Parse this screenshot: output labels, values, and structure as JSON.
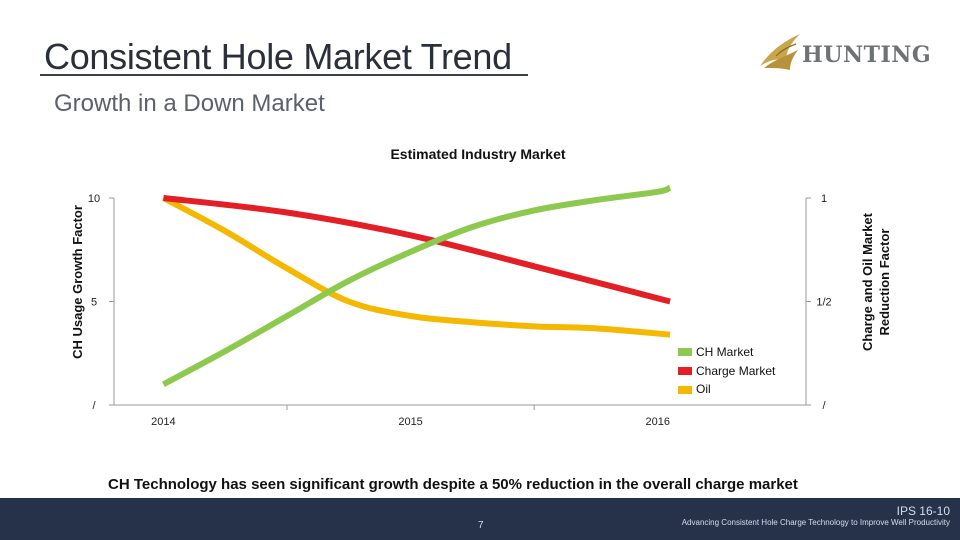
{
  "slide": {
    "title": "Consistent Hole Market Trend",
    "subtitle": "Growth in a Down Market",
    "logo_text": "HUNTING",
    "caption": "CH Technology has seen significant growth despite a 50% reduction in the overall charge market",
    "footer_code": "IPS 16-10",
    "footer_text": "Advancing Consistent Hole Charge Technology to Improve Well Productivity",
    "page_number": "7"
  },
  "colors": {
    "ch_market": "#8ec94f",
    "charge_market": "#e31e24",
    "oil": "#f5b800",
    "axis": "#9a9a9a",
    "footer": "#25324a"
  },
  "chart_data": {
    "type": "line",
    "title": "Estimated Industry Market",
    "xlabel": "",
    "ylabel": "CH Usage Growth Factor",
    "y2label_line1": "Charge and Oil Market",
    "y2label_line2": "Reduction Factor",
    "categories": [
      "2014",
      "2015",
      "2016"
    ],
    "x_range": [
      2013.8,
      2016.6
    ],
    "ylim": [
      0,
      10
    ],
    "y_ticks": [
      {
        "value": 10,
        "label": "10"
      },
      {
        "value": 5,
        "label": "5"
      },
      {
        "value": 0,
        "label": "/"
      }
    ],
    "y2lim": [
      0,
      1
    ],
    "y2_ticks": [
      {
        "value": 1,
        "label": "1"
      },
      {
        "value": 0.5,
        "label": "1/2"
      },
      {
        "value": 0,
        "label": "/"
      }
    ],
    "series": [
      {
        "name": "CH Market",
        "axis": "left",
        "color_key": "ch_market",
        "x": [
          2014.0,
          2014.25,
          2014.5,
          2014.75,
          2015.0,
          2015.25,
          2015.5,
          2015.75,
          2016.0,
          2016.05
        ],
        "values": [
          1.0,
          2.6,
          4.3,
          6.0,
          7.4,
          8.6,
          9.4,
          9.9,
          10.3,
          10.5
        ]
      },
      {
        "name": "Charge Market",
        "axis": "right",
        "color_key": "charge_market",
        "x": [
          2014.0,
          2014.5,
          2015.0,
          2015.5,
          2016.05
        ],
        "values": [
          1.0,
          0.93,
          0.82,
          0.67,
          0.5
        ]
      },
      {
        "name": "Oil",
        "axis": "right",
        "color_key": "oil",
        "x": [
          2014.0,
          2014.25,
          2014.5,
          2014.75,
          2015.0,
          2015.25,
          2015.5,
          2015.75,
          2016.05
        ],
        "values": [
          1.0,
          0.84,
          0.66,
          0.5,
          0.43,
          0.4,
          0.38,
          0.37,
          0.34
        ]
      }
    ],
    "legend_position": "bottom-right"
  }
}
